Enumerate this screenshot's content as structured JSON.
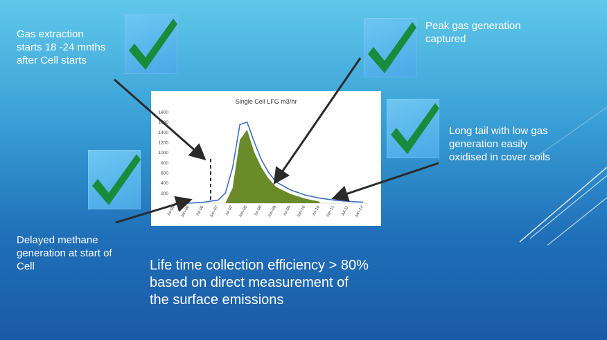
{
  "slide": {
    "callouts": {
      "gas_extraction": "Gas extraction\nstarts 18 -24 mnths\nafter Cell starts",
      "peak": "Peak gas generation\ncaptured",
      "long_tail": "Long tail with low  gas\ngeneration easily\noxidised in cover soils",
      "delayed": "Delayed methane\ngeneration at start of\nCell"
    },
    "summary": "Life time collection efficiency > 80%\nbased on direct measurement of\nthe surface emissions",
    "icons": [
      "check-icon",
      "check-icon",
      "check-icon",
      "check-icon"
    ],
    "colors": {
      "check": "#1a8a3c",
      "fill": "#6b8a2a",
      "line": "#3a6fc0"
    }
  },
  "chart_data": {
    "type": "area",
    "title": "Single Cell LFG m3/hr",
    "ylim": [
      0,
      1800
    ],
    "yticks": [
      200,
      400,
      600,
      800,
      1000,
      1200,
      1400,
      1600,
      1800
    ],
    "xticks": [
      "Jul-05",
      "Jan-06",
      "Jul-06",
      "Jan-07",
      "Jul-07",
      "Jan-08",
      "Jul-08",
      "Jan-09",
      "Jul-09",
      "Jan-10",
      "Jul-10",
      "Jan-11",
      "Jul-11",
      "Jan-12"
    ],
    "series": [
      {
        "kind": "line",
        "x": [
          "Jul-05",
          "Jan-06",
          "Jul-06",
          "Jan-07",
          "Apr-07",
          "Jul-07",
          "Oct-07",
          "Jan-08",
          "Apr-08",
          "Jul-08",
          "Oct-08",
          "Jan-09",
          "Jul-09",
          "Jan-10",
          "Jul-10",
          "Jan-11",
          "Jul-11",
          "Jan-12"
        ],
        "values": [
          0,
          0,
          20,
          60,
          200,
          700,
          1550,
          1600,
          1200,
          850,
          600,
          420,
          260,
          160,
          100,
          60,
          35,
          20
        ]
      },
      {
        "kind": "area",
        "x": [
          "Apr-07",
          "Jul-07",
          "Oct-07",
          "Jan-08",
          "Apr-08",
          "Jul-08",
          "Oct-08",
          "Jan-09",
          "Jul-09",
          "Jan-10",
          "Jul-10"
        ],
        "values": [
          0,
          300,
          1250,
          1450,
          1000,
          700,
          480,
          320,
          180,
          90,
          30
        ]
      }
    ]
  }
}
